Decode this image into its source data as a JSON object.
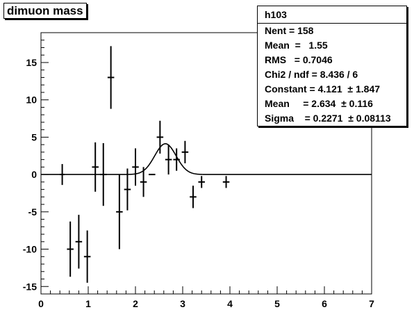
{
  "chart_data": {
    "type": "scatter",
    "title": "dimuon mass",
    "xlim": [
      0,
      7
    ],
    "ylim": [
      -16,
      19
    ],
    "xticks": [
      0,
      1,
      2,
      3,
      4,
      5,
      6,
      7
    ],
    "yticks": [
      -15,
      -10,
      -5,
      0,
      5,
      10,
      15
    ],
    "grid": false,
    "points": [
      {
        "x": 0.45,
        "xerr": 0.05,
        "y": 0,
        "yerr": 1.4
      },
      {
        "x": 0.62,
        "xerr": 0.07,
        "y": -10,
        "yerr": 3.7
      },
      {
        "x": 0.8,
        "xerr": 0.07,
        "y": -9,
        "yerr": 3.6
      },
      {
        "x": 0.98,
        "xerr": 0.07,
        "y": -11,
        "yerr": 3.5
      },
      {
        "x": 1.15,
        "xerr": 0.07,
        "y": 1,
        "yerr": 3.3
      },
      {
        "x": 1.32,
        "xerr": 0.07,
        "y": 0,
        "yerr": 4.2
      },
      {
        "x": 1.48,
        "xerr": 0.07,
        "y": 13,
        "yerr": 4.2
      },
      {
        "x": 1.66,
        "xerr": 0.07,
        "y": -5,
        "yerr": 5.0
      },
      {
        "x": 1.83,
        "xerr": 0.07,
        "y": -2,
        "yerr": 2.8
      },
      {
        "x": 2.0,
        "xerr": 0.07,
        "y": 1,
        "yerr": 2.5
      },
      {
        "x": 2.17,
        "xerr": 0.07,
        "y": -1,
        "yerr": 2.0
      },
      {
        "x": 2.35,
        "xerr": 0.07,
        "y": 0,
        "yerr": 0
      },
      {
        "x": 2.52,
        "xerr": 0.07,
        "y": 5,
        "yerr": 2.2
      },
      {
        "x": 2.7,
        "xerr": 0.07,
        "y": 2,
        "yerr": 2.0
      },
      {
        "x": 2.87,
        "xerr": 0.07,
        "y": 2,
        "yerr": 1.5
      },
      {
        "x": 3.05,
        "xerr": 0.07,
        "y": 3,
        "yerr": 1.5
      },
      {
        "x": 3.22,
        "xerr": 0.07,
        "y": -3,
        "yerr": 1.5
      },
      {
        "x": 3.4,
        "xerr": 0.07,
        "y": -1,
        "yerr": 0.8
      },
      {
        "x": 3.92,
        "xerr": 0.07,
        "y": -1,
        "yerr": 0.8
      }
    ],
    "fit": {
      "constant": 4.121,
      "mean": 2.634,
      "sigma": 0.2271,
      "xmin": 0,
      "xmax": 7
    }
  },
  "stats": {
    "name": "h103",
    "rows": [
      "Nent = 158",
      "Mean  =   1.55",
      "RMS   = 0.7046",
      "Chi2 / ndf = 8.436 / 6",
      "Constant = 4.121  ± 1.847",
      "Mean     = 2.634  ± 0.116",
      "Sigma    = 0.2271  ± 0.08113"
    ]
  }
}
